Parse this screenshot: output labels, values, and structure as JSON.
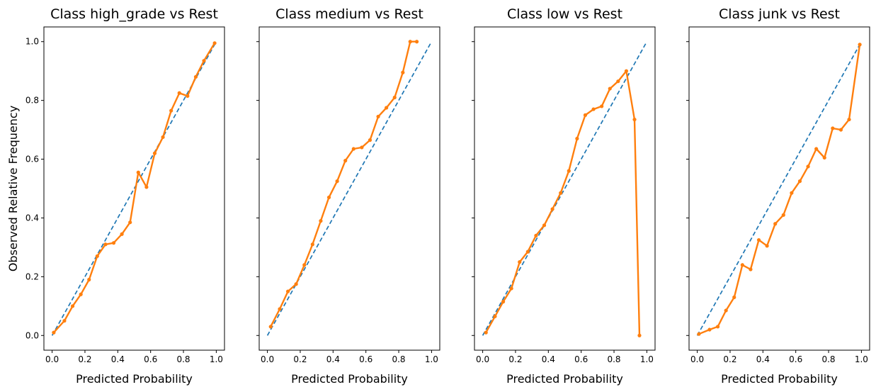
{
  "chart_data": [
    {
      "type": "line",
      "title": "Class high_grade vs Rest",
      "xlabel": "Predicted Probability",
      "ylabel": "Observed Relative Frequency",
      "xlim": [
        -0.05,
        1.05
      ],
      "ylim": [
        -0.05,
        1.05
      ],
      "xticks": [
        "0.0",
        "0.2",
        "0.4",
        "0.6",
        "0.8",
        "1.0"
      ],
      "yticks": [
        "0.0",
        "0.2",
        "0.4",
        "0.6",
        "0.8",
        "1.0"
      ],
      "grid": false,
      "series": [
        {
          "style": "dashed",
          "color": "#1f77b4",
          "x": [
            0,
            1
          ],
          "y": [
            0,
            1
          ]
        },
        {
          "style": "line-marker",
          "color": "#ff7f0e",
          "x": [
            0.01,
            0.075,
            0.125,
            0.175,
            0.225,
            0.275,
            0.325,
            0.375,
            0.425,
            0.475,
            0.525,
            0.575,
            0.625,
            0.675,
            0.725,
            0.775,
            0.825,
            0.875,
            0.925,
            0.99
          ],
          "y": [
            0.01,
            0.05,
            0.1,
            0.14,
            0.19,
            0.27,
            0.31,
            0.315,
            0.345,
            0.385,
            0.555,
            0.505,
            0.62,
            0.675,
            0.765,
            0.825,
            0.815,
            0.88,
            0.935,
            0.995
          ]
        }
      ]
    },
    {
      "type": "line",
      "title": "Class medium vs Rest",
      "xlabel": "Predicted Probability",
      "ylabel": "",
      "xlim": [
        -0.05,
        1.05
      ],
      "ylim": [
        -0.05,
        1.05
      ],
      "xticks": [
        "0.0",
        "0.2",
        "0.4",
        "0.6",
        "0.8",
        "1.0"
      ],
      "yticks": [],
      "grid": false,
      "series": [
        {
          "style": "dashed",
          "color": "#1f77b4",
          "x": [
            0,
            1
          ],
          "y": [
            0,
            1
          ]
        },
        {
          "style": "line-marker",
          "color": "#ff7f0e",
          "x": [
            0.02,
            0.075,
            0.125,
            0.175,
            0.225,
            0.275,
            0.325,
            0.375,
            0.425,
            0.475,
            0.525,
            0.575,
            0.625,
            0.675,
            0.725,
            0.775,
            0.825,
            0.87,
            0.91
          ],
          "y": [
            0.03,
            0.09,
            0.15,
            0.175,
            0.24,
            0.31,
            0.39,
            0.47,
            0.525,
            0.595,
            0.635,
            0.64,
            0.665,
            0.745,
            0.775,
            0.81,
            0.895,
            1.0,
            1.0
          ]
        }
      ]
    },
    {
      "type": "line",
      "title": "Class low vs Rest",
      "xlabel": "Predicted Probability",
      "ylabel": "",
      "xlim": [
        -0.05,
        1.05
      ],
      "ylim": [
        -0.05,
        1.05
      ],
      "xticks": [
        "0.0",
        "0.2",
        "0.4",
        "0.6",
        "0.8",
        "1.0"
      ],
      "yticks": [],
      "grid": false,
      "series": [
        {
          "style": "dashed",
          "color": "#1f77b4",
          "x": [
            0,
            1
          ],
          "y": [
            0,
            1
          ]
        },
        {
          "style": "line-marker",
          "color": "#ff7f0e",
          "x": [
            0.02,
            0.075,
            0.125,
            0.175,
            0.225,
            0.275,
            0.325,
            0.375,
            0.425,
            0.475,
            0.525,
            0.575,
            0.625,
            0.675,
            0.725,
            0.775,
            0.825,
            0.875,
            0.925,
            0.955
          ],
          "y": [
            0.01,
            0.065,
            0.115,
            0.16,
            0.25,
            0.285,
            0.34,
            0.375,
            0.43,
            0.485,
            0.56,
            0.67,
            0.75,
            0.77,
            0.78,
            0.84,
            0.865,
            0.9,
            0.735,
            0.0
          ]
        }
      ]
    },
    {
      "type": "line",
      "title": "Class junk vs Rest",
      "xlabel": "Predicted Probability",
      "ylabel": "",
      "xlim": [
        -0.05,
        1.05
      ],
      "ylim": [
        -0.05,
        1.05
      ],
      "xticks": [
        "0.0",
        "0.2",
        "0.4",
        "0.6",
        "0.8",
        "1.0"
      ],
      "yticks": [],
      "grid": false,
      "series": [
        {
          "style": "dashed",
          "color": "#1f77b4",
          "x": [
            0,
            1
          ],
          "y": [
            0,
            1
          ]
        },
        {
          "style": "line-marker",
          "color": "#ff7f0e",
          "x": [
            0.01,
            0.075,
            0.125,
            0.175,
            0.225,
            0.275,
            0.325,
            0.375,
            0.425,
            0.475,
            0.525,
            0.575,
            0.625,
            0.675,
            0.725,
            0.775,
            0.825,
            0.875,
            0.925,
            0.99
          ],
          "y": [
            0.005,
            0.02,
            0.03,
            0.085,
            0.13,
            0.24,
            0.225,
            0.325,
            0.305,
            0.38,
            0.41,
            0.485,
            0.525,
            0.575,
            0.635,
            0.605,
            0.705,
            0.7,
            0.735,
            0.99
          ]
        }
      ]
    }
  ]
}
